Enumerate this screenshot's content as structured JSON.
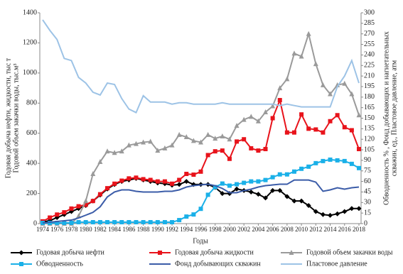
{
  "chart_data": {
    "type": "line",
    "xlabel": "Годы",
    "ylabel": [
      "Годовая добыча нефти, жидкости, тыс т",
      "Годовой объем закачки воды, тыс.м³"
    ],
    "y2label": [
      "Обводненность % , Фонд добывающих и нагнетательных",
      "скважин, ед., Пластовое давление, атм"
    ],
    "x": [
      1974,
      1975,
      1976,
      1977,
      1978,
      1979,
      1980,
      1981,
      1982,
      1983,
      1984,
      1985,
      1986,
      1987,
      1988,
      1989,
      1990,
      1991,
      1992,
      1993,
      1994,
      1995,
      1996,
      1997,
      1998,
      1999,
      2000,
      2001,
      2002,
      2003,
      2004,
      2005,
      2006,
      2007,
      2008,
      2009,
      2010,
      2011,
      2012,
      2013,
      2014,
      2015,
      2016,
      2017,
      2018
    ],
    "xlim": [
      1974,
      2018
    ],
    "xticks": [
      1974,
      1976,
      1978,
      1980,
      1982,
      1984,
      1986,
      1988,
      1990,
      1992,
      1994,
      1996,
      1998,
      2000,
      2002,
      2004,
      2006,
      2008,
      2010,
      2012,
      2014,
      2016,
      2018
    ],
    "ylim": [
      0,
      1400
    ],
    "yticks": [
      0,
      200,
      400,
      600,
      800,
      1000,
      1200,
      1400
    ],
    "y2lim": [
      0,
      300
    ],
    "y2ticks": [
      0,
      15,
      30,
      45,
      60,
      75,
      90,
      105,
      120,
      135,
      150,
      165,
      180,
      195,
      210,
      225,
      240,
      255,
      270,
      285,
      300
    ],
    "grid": false,
    "legend": "bottom",
    "series": [
      {
        "name": "Годовая добыча нефти",
        "color": "#000000",
        "marker": "diamond",
        "values": [
          10,
          20,
          40,
          60,
          80,
          100,
          120,
          150,
          190,
          230,
          260,
          280,
          290,
          300,
          290,
          280,
          270,
          265,
          255,
          260,
          280,
          260,
          260,
          260,
          240,
          200,
          200,
          230,
          220,
          210,
          195,
          170,
          220,
          220,
          180,
          150,
          150,
          120,
          80,
          60,
          55,
          65,
          80,
          100,
          100
        ]
      },
      {
        "name": "Годовая добыча жидкости",
        "color": "#e8131b",
        "marker": "square",
        "values": [
          15,
          40,
          60,
          75,
          100,
          115,
          125,
          150,
          195,
          235,
          265,
          285,
          300,
          305,
          295,
          290,
          280,
          280,
          265,
          290,
          330,
          325,
          345,
          455,
          480,
          485,
          430,
          545,
          560,
          500,
          485,
          495,
          700,
          820,
          605,
          605,
          725,
          630,
          625,
          605,
          680,
          720,
          640,
          620,
          495
        ]
      },
      {
        "name": "Годовой объем закачки воды",
        "color": "#9a9a9a",
        "marker": "triangle",
        "values": [
          0,
          0,
          0,
          0,
          0,
          50,
          150,
          330,
          410,
          480,
          470,
          480,
          520,
          530,
          540,
          545,
          485,
          500,
          520,
          590,
          575,
          550,
          540,
          590,
          565,
          580,
          560,
          650,
          690,
          710,
          680,
          740,
          780,
          900,
          960,
          1130,
          1110,
          1260,
          1060,
          920,
          860,
          920,
          930,
          860,
          720
        ]
      },
      {
        "name": "Обводненность",
        "color": "#1ab0e8",
        "marker": "square",
        "axis": "y2",
        "values": [
          1,
          1,
          1,
          1,
          1,
          2,
          2,
          2,
          2,
          2,
          2,
          2,
          2,
          2,
          2,
          2,
          2,
          2,
          2,
          5,
          10,
          13,
          21,
          41,
          52,
          57,
          54,
          56,
          58,
          60,
          60,
          62,
          66,
          70,
          70,
          74,
          78,
          81,
          86,
          89,
          91,
          90,
          89,
          85,
          79
        ]
      },
      {
        "name": "Фонд добывающих скважин",
        "color": "#3b5ca8",
        "marker": "none",
        "axis": "y2",
        "values": [
          1,
          2,
          3,
          4,
          5,
          8,
          12,
          16,
          24,
          38,
          45,
          48,
          48,
          46,
          45,
          45,
          45,
          46,
          46,
          48,
          52,
          54,
          55,
          56,
          54,
          50,
          44,
          44,
          47,
          49,
          52,
          54,
          55,
          56,
          56,
          62,
          62,
          62,
          59,
          46,
          48,
          51,
          49,
          51,
          52
        ]
      },
      {
        "name": "Пластовое давление",
        "color": "#9dc3e6",
        "marker": "none",
        "axis": "y2",
        "values": [
          290,
          275,
          262,
          235,
          232,
          208,
          200,
          187,
          183,
          200,
          198,
          178,
          163,
          158,
          182,
          173,
          173,
          173,
          170,
          172,
          172,
          170,
          170,
          170,
          170,
          172,
          170,
          170,
          170,
          170,
          170,
          170,
          170,
          168,
          170,
          168,
          166,
          166,
          166,
          166,
          166,
          195,
          210,
          232,
          200
        ]
      }
    ]
  }
}
